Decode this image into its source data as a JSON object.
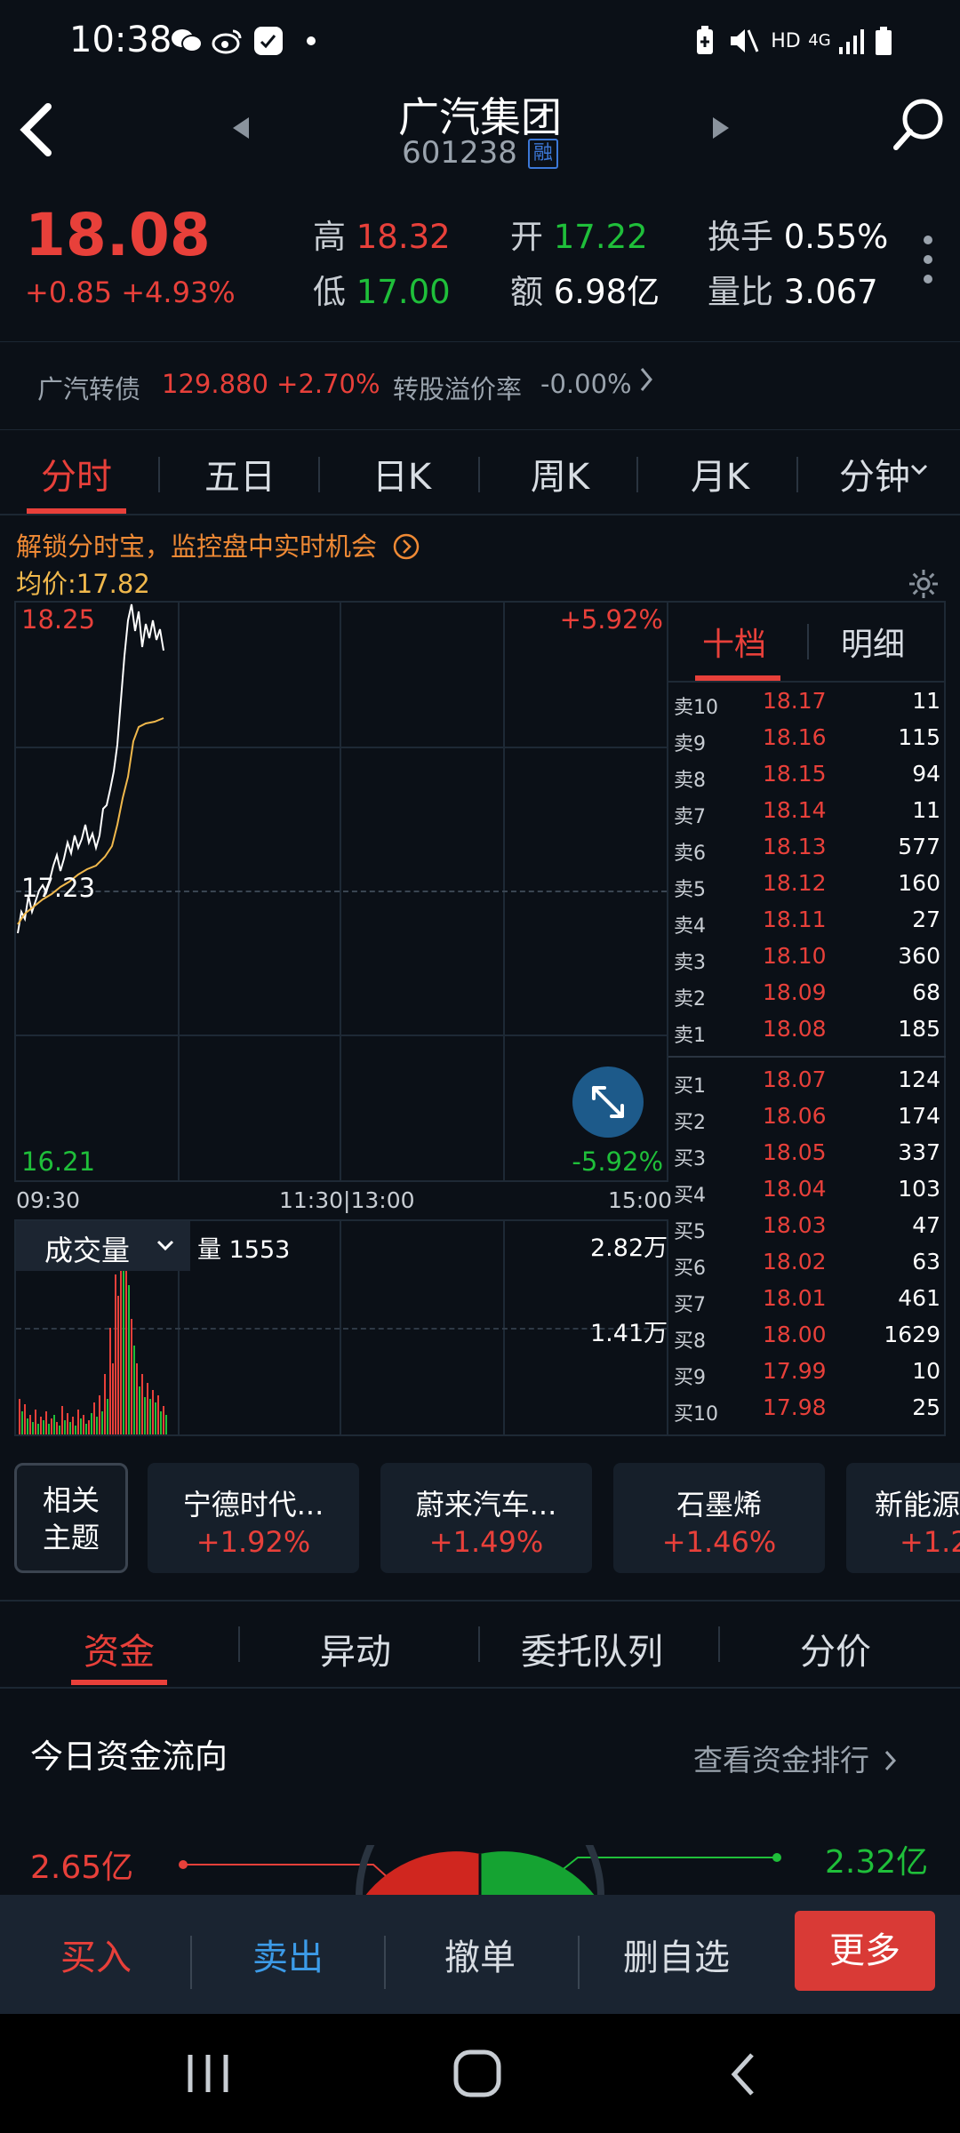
{
  "status": {
    "time": "10:38",
    "net": "HD",
    "gen": "4G"
  },
  "header": {
    "title": "广汽集团",
    "code": "601238",
    "badge": "融"
  },
  "quote": {
    "price": "18.08",
    "change": "+0.85 +4.93%",
    "high_label": "高",
    "high": "18.32",
    "low_label": "低",
    "low": "17.00",
    "open_label": "开",
    "open": "17.22",
    "amount_label": "额",
    "amount": "6.98亿",
    "turnover_label": "换手",
    "turnover": "0.55%",
    "volratio_label": "量比",
    "volratio": "3.067"
  },
  "bond": {
    "label": "广汽转债",
    "value": "129.880 +2.70%",
    "premium_label": "转股溢价率",
    "premium": "-0.00%"
  },
  "ktabs": [
    "分时",
    "五日",
    "日K",
    "周K",
    "月K",
    "分钟"
  ],
  "promo": "解锁分时宝，监控盘中实时机会",
  "avg_price": "均价:17.82",
  "chart": {
    "y_top": "18.25",
    "y_mid": "17.23",
    "y_bot": "16.21",
    "pct_top": "+5.92%",
    "pct_bot": "-5.92%",
    "t_start": "09:30",
    "t_mid": "11:30|13:00",
    "t_end": "15:00"
  },
  "volume": {
    "selector": "成交量",
    "label": "量 1553",
    "max": "2.82万",
    "mid": "1.41万"
  },
  "book": {
    "tabs": [
      "十档",
      "明细"
    ],
    "sell": [
      {
        "label": "卖10",
        "price": "18.17",
        "vol": "11"
      },
      {
        "label": "卖9",
        "price": "18.16",
        "vol": "115"
      },
      {
        "label": "卖8",
        "price": "18.15",
        "vol": "94"
      },
      {
        "label": "卖7",
        "price": "18.14",
        "vol": "11"
      },
      {
        "label": "卖6",
        "price": "18.13",
        "vol": "577"
      },
      {
        "label": "卖5",
        "price": "18.12",
        "vol": "160"
      },
      {
        "label": "卖4",
        "price": "18.11",
        "vol": "27"
      },
      {
        "label": "卖3",
        "price": "18.10",
        "vol": "360"
      },
      {
        "label": "卖2",
        "price": "18.09",
        "vol": "68"
      },
      {
        "label": "卖1",
        "price": "18.08",
        "vol": "185"
      }
    ],
    "buy": [
      {
        "label": "买1",
        "price": "18.07",
        "vol": "124"
      },
      {
        "label": "买2",
        "price": "18.06",
        "vol": "174"
      },
      {
        "label": "买3",
        "price": "18.05",
        "vol": "337"
      },
      {
        "label": "买4",
        "price": "18.04",
        "vol": "103"
      },
      {
        "label": "买5",
        "price": "18.03",
        "vol": "47"
      },
      {
        "label": "买6",
        "price": "18.02",
        "vol": "63"
      },
      {
        "label": "买7",
        "price": "18.01",
        "vol": "461"
      },
      {
        "label": "买8",
        "price": "18.00",
        "vol": "1629"
      },
      {
        "label": "买9",
        "price": "17.99",
        "vol": "10"
      },
      {
        "label": "买10",
        "price": "17.98",
        "vol": "25"
      }
    ]
  },
  "related": {
    "line1": "相关",
    "line2": "主题"
  },
  "concepts": [
    {
      "name": "宁德时代...",
      "pct": "+1.92%"
    },
    {
      "name": "蔚来汽车...",
      "pct": "+1.49%"
    },
    {
      "name": "石墨烯",
      "pct": "+1.46%"
    },
    {
      "name": "新能源",
      "pct": "+1.2"
    }
  ],
  "sub_tabs": [
    "资金",
    "异动",
    "委托队列",
    "分价"
  ],
  "flow": {
    "title": "今日资金流向",
    "link": "查看资金排行",
    "left": "2.65亿",
    "right": "2.32亿"
  },
  "actions": {
    "buy": "买入",
    "sell": "卖出",
    "cancel": "撤单",
    "remove": "删自选",
    "more": "更多"
  },
  "colors": {
    "up": "#e8403a",
    "down": "#1fbf3a",
    "accent_blue": "#3c78d8",
    "bg": "#0b1017"
  }
}
